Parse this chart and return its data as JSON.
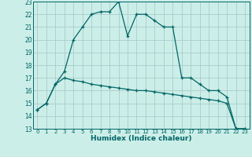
{
  "xlabel": "Humidex (Indice chaleur)",
  "bg_color": "#cceee8",
  "grid_color": "#aacccc",
  "line_color": "#006666",
  "xlim": [
    -0.5,
    23.5
  ],
  "ylim": [
    13,
    23
  ],
  "yticks": [
    13,
    14,
    15,
    16,
    17,
    18,
    19,
    20,
    21,
    22,
    23
  ],
  "xticks": [
    0,
    1,
    2,
    3,
    4,
    5,
    6,
    7,
    8,
    9,
    10,
    11,
    12,
    13,
    14,
    15,
    16,
    17,
    18,
    19,
    20,
    21,
    22,
    23
  ],
  "series1_x": [
    0,
    1,
    2,
    3,
    4,
    5,
    6,
    7,
    8,
    9,
    10,
    11,
    12,
    13,
    14,
    15,
    16,
    17,
    18,
    19,
    20,
    21,
    22,
    23
  ],
  "series1_y": [
    14.5,
    15.0,
    16.5,
    17.5,
    20.0,
    21.0,
    22.0,
    22.2,
    22.2,
    23.0,
    20.3,
    22.0,
    22.0,
    21.5,
    21.0,
    21.0,
    17.0,
    17.0,
    16.5,
    16.0,
    16.0,
    15.5,
    13.0,
    13.0
  ],
  "series2_x": [
    0,
    1,
    2,
    3,
    4,
    5,
    6,
    7,
    8,
    9,
    10,
    11,
    12,
    13,
    14,
    15,
    16,
    17,
    18,
    19,
    20,
    21,
    22,
    23
  ],
  "series2_y": [
    14.5,
    15.0,
    16.5,
    17.0,
    16.8,
    16.7,
    16.5,
    16.4,
    16.3,
    16.2,
    16.1,
    16.0,
    16.0,
    15.9,
    15.8,
    15.7,
    15.6,
    15.5,
    15.4,
    15.3,
    15.2,
    15.0,
    13.0,
    13.0
  ]
}
